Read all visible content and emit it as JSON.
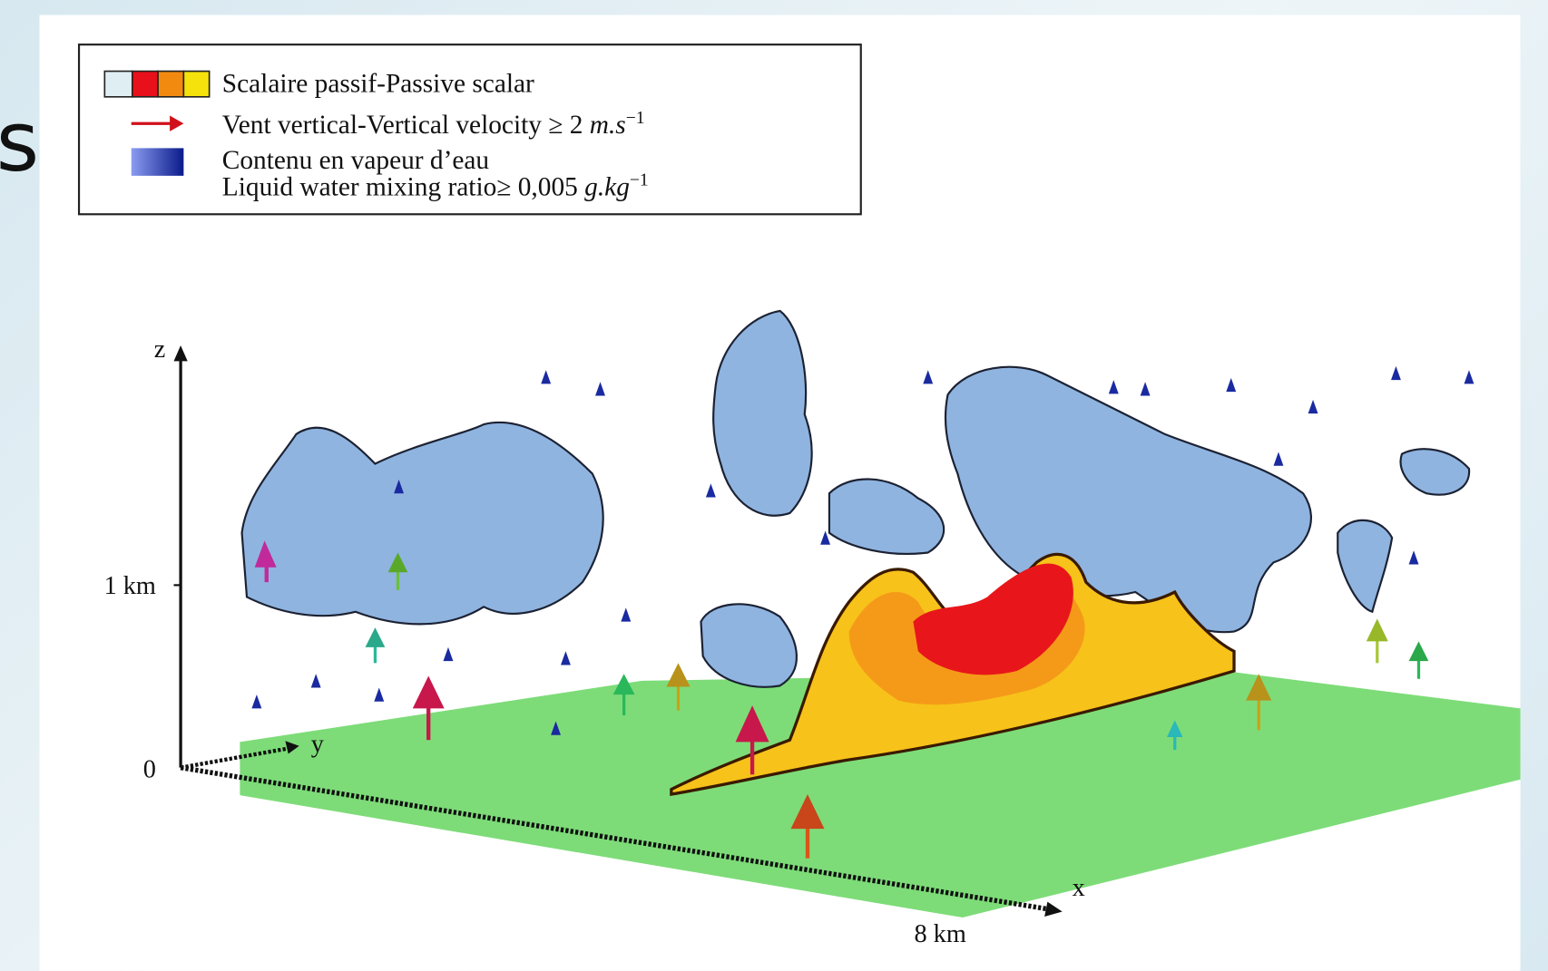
{
  "slide": {
    "title_fragment": "s"
  },
  "figure": {
    "legend": {
      "scalar": "Scalaire passif-Passive scalar",
      "velocity": {
        "text": "Vent vertical-Vertical velocity ≥ 2 ",
        "unit": "m.s",
        "exponent": "−1"
      },
      "vapour": "Contenu en vapeur d’eau",
      "liquid": {
        "text": "Liquid water mixing ratio≥ 0,005 ",
        "unit": "g.kg",
        "exponent": "−1"
      }
    },
    "axes": {
      "z": "z",
      "y": "y",
      "x": "x",
      "z_tick": "1 km",
      "origin": "0",
      "x_tick": "8 km"
    }
  }
}
